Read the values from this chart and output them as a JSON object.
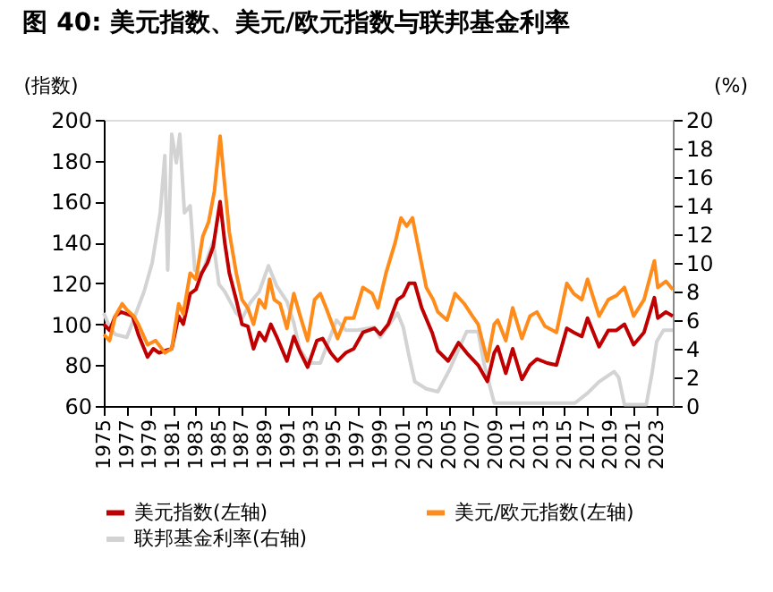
{
  "chart_data": {
    "type": "line",
    "title": "图 40: 美元指数、美元/欧元指数与联邦基金利率",
    "ylabel": "(指数)",
    "y2label": "(%)",
    "xlim": [
      1975,
      2024.4
    ],
    "xticks": [
      1975,
      1977,
      1979,
      1981,
      1983,
      1985,
      1987,
      1989,
      1991,
      1993,
      1995,
      1997,
      1999,
      2001,
      2003,
      2005,
      2007,
      2009,
      2011,
      2013,
      2015,
      2017,
      2019,
      2021,
      2023
    ],
    "ylim": [
      60,
      200
    ],
    "yticks": [
      60,
      80,
      100,
      120,
      140,
      160,
      180,
      200
    ],
    "y2lim": [
      0,
      20
    ],
    "y2ticks": [
      0,
      2,
      4,
      6,
      8,
      10,
      12,
      14,
      16,
      18,
      20
    ],
    "legend": "bottom",
    "series": [
      {
        "name": "美元指数(左轴)",
        "color": "#c00000",
        "x": [
          1975.0,
          1975.5,
          1976.0,
          1976.5,
          1977.0,
          1977.5,
          1978.0,
          1978.8,
          1979.3,
          1979.8,
          1980.3,
          1980.9,
          1981.5,
          1981.9,
          1982.5,
          1983.0,
          1983.5,
          1984.0,
          1984.5,
          1985.1,
          1985.5,
          1985.9,
          1986.5,
          1987.0,
          1987.5,
          1988.0,
          1988.5,
          1989.0,
          1989.5,
          1990.0,
          1990.9,
          1991.5,
          1992.0,
          1992.7,
          1993.5,
          1994.0,
          1994.7,
          1995.3,
          1996.0,
          1996.7,
          1997.5,
          1998.5,
          1999.0,
          1999.7,
          2000.5,
          2001.0,
          2001.5,
          2002.0,
          2002.6,
          2003.5,
          2004.0,
          2004.9,
          2005.8,
          2006.5,
          2007.5,
          2008.3,
          2008.9,
          2009.2,
          2009.9,
          2010.5,
          2011.3,
          2012.0,
          2012.6,
          2013.5,
          2014.3,
          2015.2,
          2015.8,
          2016.5,
          2017.0,
          2018.0,
          2018.8,
          2019.5,
          2020.2,
          2021.0,
          2021.9,
          2022.8,
          2023.1,
          2023.8,
          2024.4
        ],
        "values": [
          100,
          97,
          104,
          106,
          105,
          104,
          95,
          84,
          88,
          86,
          87,
          88,
          104,
          100,
          115,
          117,
          125,
          130,
          138,
          160,
          140,
          125,
          112,
          100,
          99,
          88,
          96,
          92,
          100,
          94,
          82,
          94,
          87,
          79,
          92,
          93,
          86,
          82,
          86,
          88,
          96,
          98,
          95,
          100,
          112,
          114,
          120,
          120,
          108,
          96,
          87,
          82,
          91,
          86,
          80,
          72,
          86,
          89,
          76,
          88,
          73,
          80,
          83,
          81,
          80,
          98,
          96,
          94,
          103,
          89,
          97,
          97,
          100,
          90,
          96,
          113,
          103,
          106,
          104
        ]
      },
      {
        "name": "美元/欧元指数(左轴)",
        "color": "#ff8c1a",
        "x": [
          1975.0,
          1975.5,
          1976.0,
          1976.6,
          1977.0,
          1977.6,
          1978.0,
          1978.8,
          1979.5,
          1980.3,
          1980.9,
          1981.5,
          1981.9,
          1982.5,
          1983.0,
          1983.6,
          1984.1,
          1984.6,
          1985.1,
          1985.5,
          1985.9,
          1986.5,
          1987.0,
          1987.5,
          1988.0,
          1988.5,
          1989.0,
          1989.4,
          1989.8,
          1990.3,
          1990.9,
          1991.5,
          1992.0,
          1992.7,
          1993.3,
          1993.8,
          1994.3,
          1995.3,
          1996.0,
          1996.7,
          1997.5,
          1998.3,
          1998.8,
          1999.5,
          2000.3,
          2000.8,
          2001.3,
          2001.8,
          2002.4,
          2003.0,
          2003.6,
          2004.0,
          2004.8,
          2005.5,
          2006.3,
          2007.0,
          2007.5,
          2008.3,
          2008.9,
          2009.2,
          2009.9,
          2010.5,
          2011.3,
          2012.0,
          2012.6,
          2013.3,
          2014.3,
          2015.2,
          2015.8,
          2016.5,
          2017.0,
          2018.0,
          2018.8,
          2019.5,
          2020.2,
          2021.0,
          2021.9,
          2022.8,
          2023.1,
          2023.8,
          2024.4
        ],
        "values": [
          95,
          92,
          104,
          110,
          107,
          104,
          100,
          90,
          92,
          86,
          88,
          110,
          105,
          125,
          122,
          143,
          150,
          165,
          192,
          168,
          145,
          125,
          112,
          108,
          100,
          112,
          108,
          122,
          112,
          110,
          98,
          115,
          105,
          92,
          112,
          115,
          108,
          93,
          103,
          103,
          118,
          115,
          108,
          125,
          140,
          152,
          148,
          152,
          135,
          118,
          112,
          106,
          102,
          115,
          110,
          104,
          100,
          82,
          100,
          102,
          92,
          108,
          93,
          104,
          106,
          99,
          96,
          120,
          115,
          112,
          122,
          104,
          112,
          114,
          118,
          104,
          112,
          131,
          118,
          121,
          117
        ]
      },
      {
        "name": "联邦基金利率(右轴)",
        "color": "#d3d3d3",
        "axis": "y2",
        "x": [
          1975.0,
          1975.5,
          1976.0,
          1977.0,
          1977.8,
          1978.5,
          1979.2,
          1979.9,
          1980.3,
          1980.55,
          1980.9,
          1981.3,
          1981.6,
          1982.0,
          1982.5,
          1982.9,
          1983.5,
          1984.5,
          1985.0,
          1985.5,
          1986.5,
          1987.0,
          1987.7,
          1988.5,
          1989.3,
          1990.0,
          1990.9,
          1991.5,
          1992.0,
          1992.8,
          1993.8,
          1994.5,
          1995.2,
          1996.0,
          1997.0,
          1998.5,
          1999.0,
          2000.5,
          2001.0,
          2001.5,
          2002.0,
          2003.0,
          2004.0,
          2005.0,
          2006.5,
          2007.5,
          2008.0,
          2008.9,
          2010.0,
          2015.9,
          2017.0,
          2018.0,
          2019.3,
          2019.7,
          2020.2,
          2022.1,
          2022.6,
          2023.0,
          2023.6,
          2024.4
        ],
        "values": [
          6.5,
          5.5,
          5.0,
          4.8,
          6.5,
          8,
          10,
          13.5,
          17.5,
          9.5,
          19,
          17,
          19,
          13.5,
          14,
          9.5,
          9.2,
          11.5,
          8.5,
          8,
          6.5,
          6.1,
          7.2,
          8,
          9.8,
          8.4,
          7.3,
          5.8,
          4.0,
          3.0,
          3.0,
          4.5,
          6.0,
          5.3,
          5.3,
          5.5,
          4.8,
          6.5,
          5.5,
          3.5,
          1.7,
          1.2,
          1.0,
          2.5,
          5.2,
          5.2,
          3.0,
          0.2,
          0.2,
          0.2,
          0.9,
          1.7,
          2.4,
          2.0,
          0.1,
          0.1,
          2.3,
          4.5,
          5.3,
          5.3
        ]
      }
    ]
  }
}
